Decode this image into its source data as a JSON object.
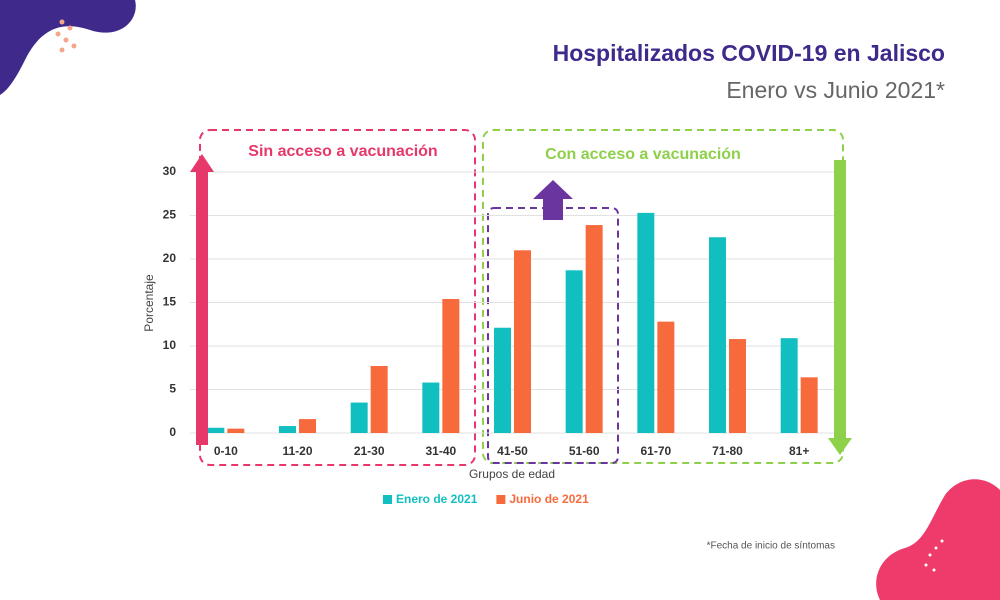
{
  "chart_data": {
    "type": "bar",
    "title": "Hospitalizados COVID-19 en Jalisco",
    "subtitle": "Enero vs Junio 2021*",
    "xlabel": "Grupos de edad",
    "ylabel": "Porcentaje",
    "footnote": "*Fecha de inicio de síntomas",
    "annotations": [
      "Sin acceso a vacunación",
      "Con acceso a vacunación"
    ],
    "categories": [
      "0-10",
      "11-20",
      "21-30",
      "31-40",
      "41-50",
      "51-60",
      "61-70",
      "71-80",
      "81+"
    ],
    "series": [
      {
        "name": "Enero de 2021",
        "color": "#12bfc0",
        "values": [
          0.6,
          0.8,
          3.5,
          5.8,
          12.1,
          18.7,
          25.3,
          22.5,
          10.9
        ]
      },
      {
        "name": "Junio de 2021",
        "color": "#f76a3c",
        "values": [
          0.5,
          1.6,
          7.7,
          15.4,
          21,
          23.9,
          12.8,
          10.8,
          6.4
        ]
      }
    ],
    "ylim": [
      0,
      30
    ],
    "yticks": [
      0,
      5,
      10,
      15,
      20,
      25,
      30
    ],
    "grid": true
  }
}
